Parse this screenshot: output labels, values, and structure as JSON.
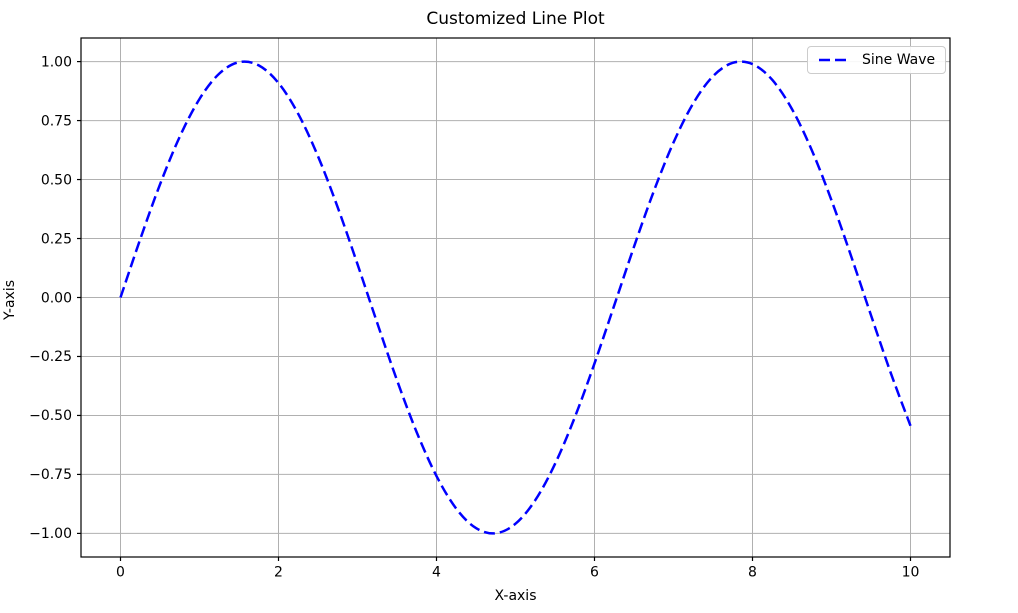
{
  "figure": {
    "background": "#ffffff"
  },
  "chart_data": {
    "type": "line",
    "title": "Customized Line Plot",
    "xlabel": "X-axis",
    "ylabel": "Y-axis",
    "xlim": [
      -0.5,
      10.5
    ],
    "ylim": [
      -1.1,
      1.1
    ],
    "grid": true,
    "x_ticks": [
      0,
      2,
      4,
      6,
      8,
      10
    ],
    "x_tick_labels": [
      "0",
      "2",
      "4",
      "6",
      "8",
      "10"
    ],
    "y_ticks": [
      -1.0,
      -0.75,
      -0.5,
      -0.25,
      0.0,
      0.25,
      0.5,
      0.75,
      1.0
    ],
    "y_tick_labels": [
      "−1.00",
      "−0.75",
      "−0.50",
      "−0.25",
      "0.00",
      "0.25",
      "0.50",
      "0.75",
      "1.00"
    ],
    "legend": {
      "position": "upper right",
      "entries": [
        {
          "label": "Sine Wave",
          "color": "#0000ff",
          "linestyle": "dashed",
          "linewidth": 2.5
        }
      ]
    },
    "series": [
      {
        "name": "Sine Wave",
        "color": "#0000ff",
        "linestyle": "dashed",
        "linewidth": 2.5,
        "x": [
          0,
          0.25,
          0.5,
          0.75,
          1,
          1.25,
          1.5,
          1.75,
          2,
          2.25,
          2.5,
          2.75,
          3,
          3.25,
          3.5,
          3.75,
          4,
          4.25,
          4.5,
          4.75,
          5,
          5.25,
          5.5,
          5.75,
          6,
          6.25,
          6.5,
          6.75,
          7,
          7.25,
          7.5,
          7.75,
          8,
          8.25,
          8.5,
          8.75,
          9,
          9.25,
          9.5,
          9.75,
          10
        ],
        "y": [
          0,
          0.2474,
          0.4794,
          0.6816,
          0.8415,
          0.949,
          0.9975,
          0.9839,
          0.9093,
          0.7781,
          0.5985,
          0.3817,
          0.1411,
          -0.1082,
          -0.3508,
          -0.5716,
          -0.7568,
          -0.895,
          -0.9775,
          -0.9993,
          -0.9589,
          -0.8594,
          -0.7055,
          -0.5083,
          -0.2794,
          -0.0332,
          0.2151,
          0.45,
          0.657,
          0.8231,
          0.938,
          0.9946,
          0.9894,
          0.9226,
          0.7985,
          0.6248,
          0.4121,
          0.1739,
          -0.0752,
          -0.3196,
          -0.544
        ]
      }
    ]
  },
  "style": {
    "grid_color": "#b0b0b0",
    "spine_color": "#000000",
    "tick_color": "#000000",
    "text_color": "#000000",
    "legend_border_color": "#cccccc",
    "legend_background": "#ffffff"
  }
}
